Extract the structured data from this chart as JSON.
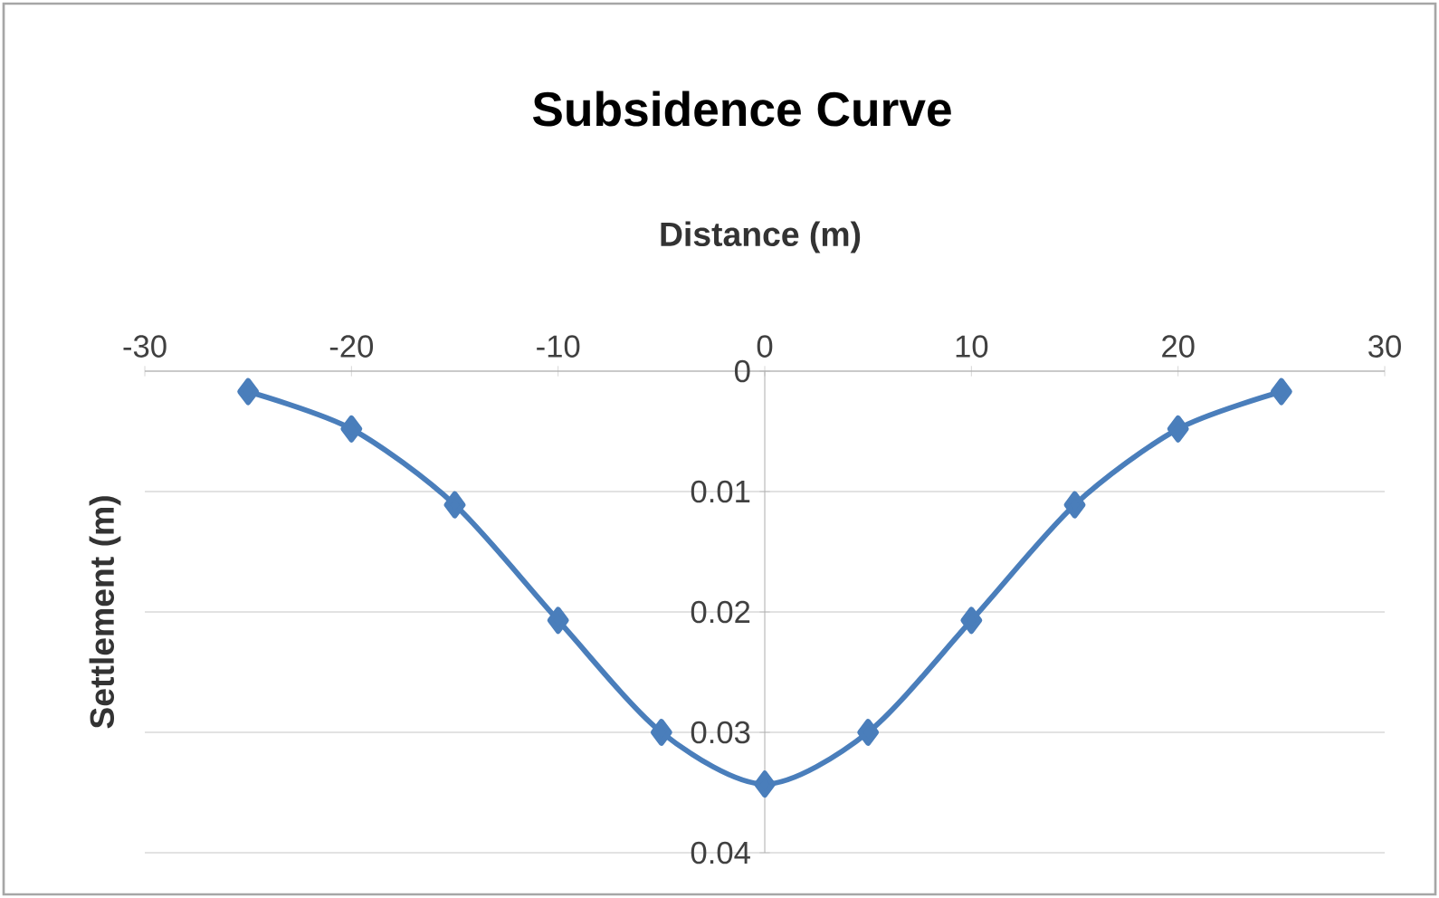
{
  "chart_data": {
    "type": "line",
    "title": "Subsidence Curve",
    "xlabel": "Distance (m)",
    "ylabel": "Settlement (m)",
    "x": [
      -25,
      -20,
      -15,
      -10,
      -5,
      0,
      5,
      10,
      15,
      20,
      25
    ],
    "series": [
      {
        "color": "#4a7ebb",
        "values": [
          0.0017,
          0.0048,
          0.0111,
          0.0207,
          0.03,
          0.0343,
          0.03,
          0.0207,
          0.0111,
          0.0048,
          0.0017
        ]
      }
    ],
    "xlim": [
      -30,
      30
    ],
    "xticks": [
      -30,
      -20,
      -10,
      0,
      10,
      20,
      30
    ],
    "ylim": [
      0.04,
      0
    ],
    "yticks": [
      0,
      0.01,
      0.02,
      0.03,
      0.04
    ],
    "grid": "y",
    "marker": "diamond",
    "line_style": "solid"
  }
}
